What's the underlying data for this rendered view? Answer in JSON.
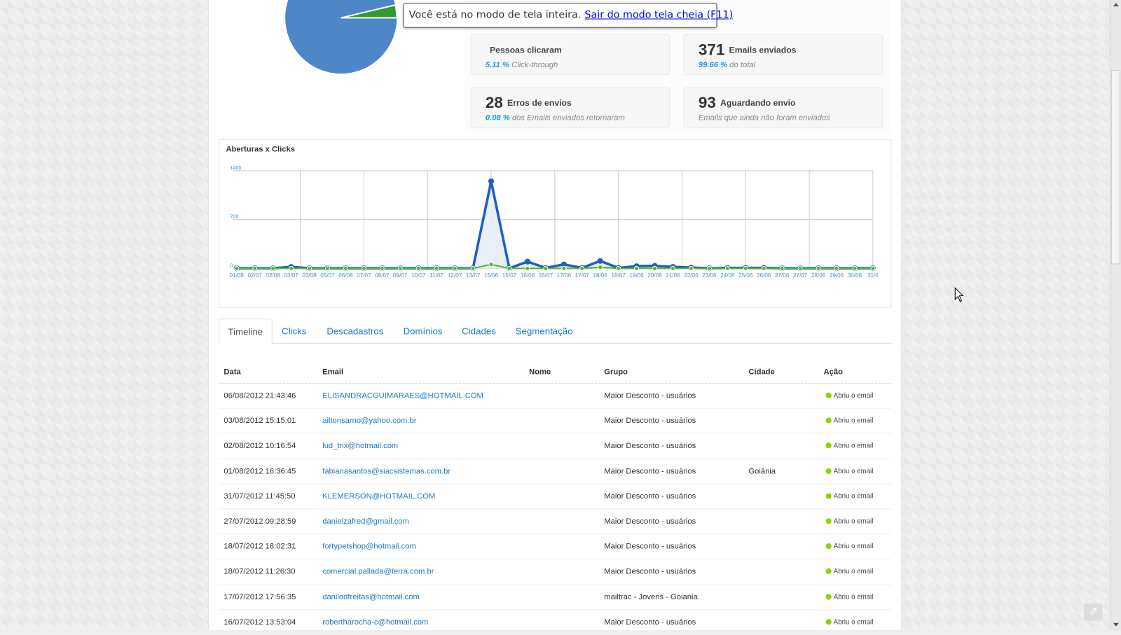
{
  "fullscreen_notice": {
    "text": "Você está no modo de tela inteira.",
    "link": "Sair do modo tela cheia (F11)"
  },
  "pie": {
    "colors": {
      "opened": "#4f86c6",
      "clicked": "#339933"
    }
  },
  "stats": [
    {
      "number": "",
      "label": "Pessoas clicaram",
      "pct": "5.11 %",
      "sub": "Click-through"
    },
    {
      "number": "371",
      "label": "Emails enviados",
      "pct": "99.66 %",
      "sub": "do total"
    },
    {
      "number": "28",
      "label": "Erros de envios",
      "pct": "0.08 %",
      "sub": "dos Emails enviados retornaram"
    },
    {
      "number": "93",
      "label": "Aguardando envio",
      "pct": "",
      "sub": "Emails que ainda não foram enviados"
    }
  ],
  "chart_data": {
    "type": "line",
    "title": "Aberturas x Clicks",
    "x": [
      "01/08",
      "02/07",
      "02/08",
      "03/07",
      "03/08",
      "05/07",
      "06/08",
      "07/07",
      "08/07",
      "09/07",
      "10/07",
      "11/07",
      "12/07",
      "13/07",
      "15/06",
      "15/07",
      "16/06",
      "16/07",
      "17/06",
      "17/07",
      "18/06",
      "18/07",
      "19/06",
      "20/06",
      "21/06",
      "22/06",
      "23/06",
      "24/06",
      "25/06",
      "26/06",
      "27/06",
      "27/07",
      "28/06",
      "29/06",
      "30/06",
      "31/0"
    ],
    "yticks": [
      "0",
      "700",
      "1400"
    ],
    "ylim": [
      0,
      1400
    ],
    "grid": true,
    "series": [
      {
        "color": "#1f5fbf",
        "fill": "#e8eff8",
        "values": [
          5,
          5,
          5,
          25,
          5,
          5,
          5,
          5,
          5,
          5,
          5,
          5,
          5,
          5,
          1250,
          5,
          100,
          10,
          60,
          10,
          110,
          10,
          35,
          40,
          25,
          15,
          5,
          10,
          10,
          10,
          5,
          5,
          5,
          5,
          5,
          5
        ]
      },
      {
        "color": "#55b52a",
        "values": [
          3,
          3,
          3,
          3,
          3,
          3,
          3,
          3,
          3,
          3,
          3,
          3,
          3,
          3,
          60,
          3,
          3,
          3,
          3,
          3,
          20,
          3,
          3,
          3,
          3,
          3,
          3,
          3,
          3,
          3,
          3,
          3,
          3,
          3,
          3,
          3
        ]
      }
    ]
  },
  "tabs": [
    "Timeline",
    "Clicks",
    "Descadastros",
    "Domínios",
    "Cidades",
    "Segmentação"
  ],
  "table": {
    "headers": [
      "Data",
      "Email",
      "Nome",
      "Grupo",
      "Cidade",
      "Ação"
    ],
    "rows": [
      [
        "06/08/2012 21:43:46",
        "ELISANDRACGUIMARAES@HOTMAIL.COM",
        "",
        "Maior Desconto - usuários",
        "",
        "Abriu o email"
      ],
      [
        "03/08/2012 15:15:01",
        "ailtonsarno@yahoo.com.br",
        "",
        "Maior Desconto - usuários",
        "",
        "Abriu o email"
      ],
      [
        "02/08/2012 10:16:54",
        "lud_trix@hotmail.com",
        "",
        "Maior Desconto - usuários",
        "",
        "Abriu o email"
      ],
      [
        "01/08/2012 16:36:45",
        "fabianasantos@siacsistemas.com.br",
        "",
        "Maior Desconto - usuários",
        "Goiânia",
        "Abriu o email"
      ],
      [
        "31/07/2012 11:45:50",
        "KLEMERSON@HOTMAIL.COM",
        "",
        "Maior Desconto - usuários",
        "",
        "Abriu o email"
      ],
      [
        "27/07/2012 09:28:59",
        "danielzafred@gmail.com",
        "",
        "Maior Desconto - usuários",
        "",
        "Abriu o email"
      ],
      [
        "18/07/2012 18:02:31",
        "fortypetshop@hotmail.com",
        "",
        "Maior Desconto - usuários",
        "",
        "Abriu o email"
      ],
      [
        "18/07/2012 11:26:30",
        "comercial.pallada@terra.com.br",
        "",
        "Maior Desconto - usuários",
        "",
        "Abriu o email"
      ],
      [
        "17/07/2012 17:56:35",
        "danilodfreitas@hotmail.com",
        "",
        "mailtrac - Jovens - Goiania",
        "",
        "Abriu o email"
      ],
      [
        "16/07/2012 13:53:04",
        "robertharocha-c@hotmail.com",
        "",
        "Maior Desconto - usuários",
        "",
        "Abriu o email"
      ]
    ]
  }
}
